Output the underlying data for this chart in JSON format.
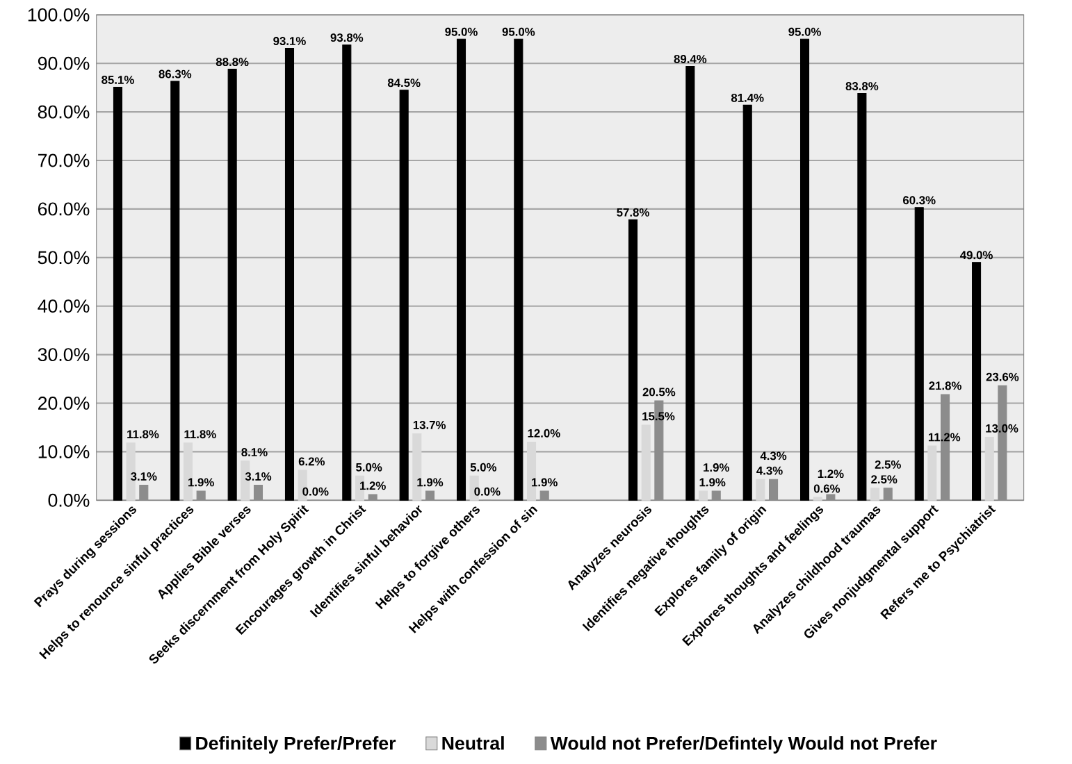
{
  "chart_data": {
    "type": "bar",
    "categories": [
      "Prays during sessions",
      "Helps to renounce sinful practices",
      "Applies Bible verses",
      "Seeks discernment from Holy Spirit",
      "Encourages growth in Christ",
      "Identifies sinful behavior",
      "Helps to forgive others",
      "Helps with confession of sin",
      null,
      "Analyzes neurosis",
      "Identifies negative thoughts",
      "Explores family of origin",
      "Explores thoughts and feelings",
      "Analyzes childhood traumas",
      "Gives nonjudgmental support",
      "Refers me to Psychiatrist"
    ],
    "series": [
      {
        "name": "Definitely Prefer/Prefer",
        "color": "#000000",
        "values": [
          85.1,
          86.3,
          88.8,
          93.1,
          93.8,
          84.5,
          95.0,
          95.0,
          null,
          57.8,
          89.4,
          81.4,
          95.0,
          83.8,
          60.3,
          49.0
        ],
        "value_labels": [
          "85.1%",
          "86.3%",
          "88.8%",
          "93.1%",
          "93.8%",
          "84.5%",
          "95.0%",
          "95.0%",
          null,
          "57.8%",
          "89.4%",
          "81.4%",
          "95.0%",
          "83.8%",
          "60.3%",
          "49.0%"
        ]
      },
      {
        "name": "Neutral",
        "color": "#d9d9d9",
        "values": [
          11.8,
          11.8,
          8.1,
          6.2,
          5.0,
          13.7,
          5.0,
          12.0,
          null,
          15.5,
          1.9,
          4.3,
          0.6,
          2.5,
          11.2,
          13.0
        ],
        "value_labels": [
          "11.8%",
          "11.8%",
          "8.1%",
          "6.2%",
          "5.0%",
          "13.7%",
          "5.0%",
          "12.0%",
          null,
          "15.5%",
          "1.9%",
          "4.3%",
          "0.6%",
          "2.5%",
          "11.2%",
          "13.0%"
        ]
      },
      {
        "name": "Would not Prefer/Defintely Would not Prefer",
        "color": "#8c8c8c",
        "values": [
          3.1,
          1.9,
          3.1,
          0.0,
          1.2,
          1.9,
          0.0,
          1.9,
          null,
          20.5,
          1.9,
          4.3,
          1.2,
          2.5,
          21.8,
          23.6
        ],
        "value_labels": [
          "3.1%",
          "1.9%",
          "3.1%",
          "0.0%",
          "1.2%",
          "1.9%",
          "0.0%",
          "1.9%",
          null,
          "20.5%",
          "1.9%",
          "4.3%",
          "1.2%",
          "2.5%",
          "21.8%",
          "23.6%"
        ]
      }
    ],
    "ylim": [
      0,
      100
    ],
    "yticks": [
      {
        "value": 0,
        "label": "0.0%"
      },
      {
        "value": 10,
        "label": "10.0%"
      },
      {
        "value": 20,
        "label": "20.0%"
      },
      {
        "value": 30,
        "label": "30.0%"
      },
      {
        "value": 40,
        "label": "40.0%"
      },
      {
        "value": 50,
        "label": "50.0%"
      },
      {
        "value": 60,
        "label": "60.0%"
      },
      {
        "value": 70,
        "label": "70.0%"
      },
      {
        "value": 80,
        "label": "80.0%"
      },
      {
        "value": 90,
        "label": "90.0%"
      },
      {
        "value": 100,
        "label": "100.0%"
      }
    ],
    "grid": "y",
    "legend": "bottom"
  }
}
